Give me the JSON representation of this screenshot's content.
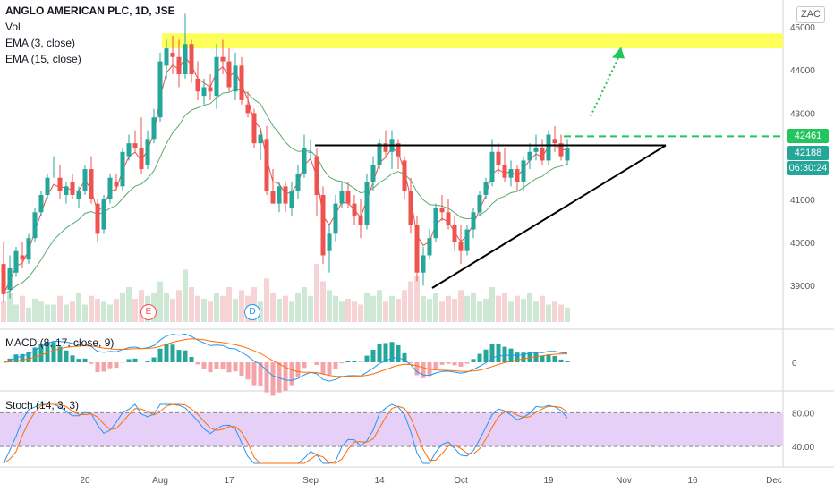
{
  "header": {
    "symbol_line": "ANGLO AMERICAN PLC, 1D, JSE",
    "indicators": [
      "Vol",
      "EMA (3, close)",
      "EMA (15, close)"
    ],
    "currency": "ZAC"
  },
  "colors": {
    "up": "#26a69a",
    "down": "#ef5350",
    "ema_fast": "#e0534a",
    "ema_slow": "#5aaa6e",
    "zone": "#ffff5c",
    "target": "#22c55e",
    "vol_up": "#cfe8d6",
    "vol_down": "#f6d3d5",
    "stoch_band": "#e6d0f7",
    "macd_line": "#2196f3",
    "signal_line": "#ff6d00"
  },
  "price_tags": {
    "level": "42461",
    "last": "42188",
    "countdown": "06:30:24"
  },
  "events": [
    "E",
    "D"
  ],
  "macd_pane": {
    "label": "MACD (8, 17, close, 9)",
    "zero_label": "0"
  },
  "stoch_pane": {
    "label": "Stoch (14, 3, 3)",
    "upper_label": "80.00",
    "lower_label": "40.00"
  },
  "chart_data": {
    "type": "candlestick",
    "y_ticks": [
      "45000",
      "44000",
      "43000",
      "42000",
      "41000",
      "40000",
      "39000"
    ],
    "y_range": [
      38600,
      45500
    ],
    "x_ticks": [
      {
        "label": "20",
        "bar": 13
      },
      {
        "label": "Aug",
        "bar": 25
      },
      {
        "label": "17",
        "bar": 36
      },
      {
        "label": "Sep",
        "bar": 49
      },
      {
        "label": "14",
        "bar": 60
      },
      {
        "label": "Oct",
        "bar": 73
      },
      {
        "label": "19",
        "bar": 87
      },
      {
        "label": "Nov",
        "bar": 99
      },
      {
        "label": "16",
        "bar": 110
      },
      {
        "label": "Dec",
        "bar": 123
      }
    ],
    "candles": [
      [
        39500,
        40000,
        38600,
        38800
      ],
      [
        38900,
        39700,
        38700,
        39400
      ],
      [
        39300,
        39900,
        39200,
        39800
      ],
      [
        39700,
        40000,
        39400,
        39600
      ],
      [
        39600,
        40200,
        39500,
        40100
      ],
      [
        40100,
        40800,
        40000,
        40700
      ],
      [
        40700,
        41200,
        40600,
        41100
      ],
      [
        41100,
        41600,
        41000,
        41500
      ],
      [
        41600,
        42000,
        41500,
        41600
      ],
      [
        41500,
        41800,
        41000,
        41200
      ],
      [
        41100,
        41400,
        40900,
        41300
      ],
      [
        41400,
        41600,
        41000,
        41100
      ],
      [
        41000,
        41300,
        40800,
        41200
      ],
      [
        41200,
        41800,
        41100,
        41700
      ],
      [
        41700,
        42000,
        40900,
        41000
      ],
      [
        40900,
        41000,
        40000,
        40200
      ],
      [
        40300,
        41100,
        40200,
        41000
      ],
      [
        41000,
        41600,
        40900,
        41500
      ],
      [
        41400,
        41600,
        41200,
        41300
      ],
      [
        41300,
        42200,
        41200,
        42100
      ],
      [
        42000,
        42500,
        41900,
        42300
      ],
      [
        42300,
        42600,
        42100,
        42200
      ],
      [
        42200,
        42900,
        41600,
        41700
      ],
      [
        41800,
        42600,
        41700,
        42400
      ],
      [
        42400,
        43100,
        42300,
        42900
      ],
      [
        42900,
        44400,
        42800,
        44200
      ],
      [
        44100,
        44700,
        43800,
        44500
      ],
      [
        44400,
        44800,
        43900,
        44300
      ],
      [
        44300,
        44700,
        43600,
        43900
      ],
      [
        43900,
        45300,
        43800,
        44600
      ],
      [
        44600,
        44700,
        43700,
        43900
      ],
      [
        43800,
        44200,
        43300,
        43500
      ],
      [
        43400,
        43800,
        43200,
        43600
      ],
      [
        43600,
        43900,
        43300,
        43500
      ],
      [
        43400,
        44600,
        43100,
        44300
      ],
      [
        44300,
        44700,
        43900,
        44200
      ],
      [
        44200,
        44500,
        43500,
        43600
      ],
      [
        43500,
        44400,
        43300,
        44100
      ],
      [
        44100,
        44300,
        43200,
        43300
      ],
      [
        43200,
        43500,
        42900,
        43000
      ],
      [
        43000,
        43100,
        42200,
        42300
      ],
      [
        42300,
        42600,
        41900,
        42500
      ],
      [
        42400,
        42700,
        41100,
        41200
      ],
      [
        41200,
        41700,
        40900,
        40900
      ],
      [
        40900,
        41400,
        40700,
        41300
      ],
      [
        41300,
        41400,
        40700,
        40900
      ],
      [
        40800,
        41400,
        40600,
        41200
      ],
      [
        41200,
        41800,
        41000,
        41600
      ],
      [
        41600,
        42500,
        41500,
        42200
      ],
      [
        42100,
        42400,
        41900,
        42100
      ],
      [
        42000,
        42200,
        40600,
        41100
      ],
      [
        41100,
        41300,
        39500,
        39700
      ],
      [
        39800,
        40400,
        39300,
        40200
      ],
      [
        40200,
        41100,
        40000,
        40900
      ],
      [
        40900,
        41400,
        40800,
        41200
      ],
      [
        41200,
        41400,
        40800,
        40900
      ],
      [
        40900,
        41100,
        40400,
        40600
      ],
      [
        40600,
        41000,
        40100,
        40400
      ],
      [
        40400,
        41600,
        40300,
        41400
      ],
      [
        41400,
        42000,
        41200,
        41800
      ],
      [
        41800,
        42400,
        41700,
        42300
      ],
      [
        42300,
        42600,
        42000,
        42100
      ],
      [
        42100,
        42600,
        41700,
        42400
      ],
      [
        42300,
        42400,
        41700,
        42000
      ],
      [
        41900,
        42000,
        41000,
        41200
      ],
      [
        41200,
        41500,
        40200,
        40400
      ],
      [
        40400,
        40600,
        39100,
        39300
      ],
      [
        39300,
        39900,
        39000,
        39700
      ],
      [
        39700,
        40300,
        39600,
        40100
      ],
      [
        40100,
        40900,
        40000,
        40800
      ],
      [
        40800,
        41100,
        40500,
        40700
      ],
      [
        40700,
        41000,
        40300,
        40400
      ],
      [
        40400,
        40600,
        39800,
        40000
      ],
      [
        40000,
        40400,
        39500,
        39800
      ],
      [
        39800,
        40400,
        39700,
        40300
      ],
      [
        40300,
        40800,
        40100,
        40700
      ],
      [
        40700,
        41200,
        40600,
        41100
      ],
      [
        41100,
        41500,
        41000,
        41400
      ],
      [
        41400,
        42400,
        41300,
        42100
      ],
      [
        42100,
        42300,
        41600,
        41800
      ],
      [
        41800,
        42200,
        41400,
        41500
      ],
      [
        41500,
        41900,
        41300,
        41700
      ],
      [
        41700,
        41800,
        41200,
        41400
      ],
      [
        41400,
        42000,
        41200,
        41900
      ],
      [
        41900,
        42300,
        41700,
        42100
      ],
      [
        42100,
        42500,
        41900,
        42200
      ],
      [
        42200,
        42400,
        41800,
        41900
      ],
      [
        41900,
        42600,
        41800,
        42500
      ],
      [
        42400,
        42700,
        42100,
        42300
      ],
      [
        42300,
        42500,
        41900,
        42000
      ],
      [
        41900,
        42400,
        41800,
        42188
      ]
    ],
    "volume": [
      0.35,
      0.5,
      0.3,
      0.45,
      0.25,
      0.4,
      0.35,
      0.3,
      0.3,
      0.45,
      0.3,
      0.35,
      0.5,
      0.3,
      0.45,
      0.4,
      0.35,
      0.3,
      0.4,
      0.5,
      0.6,
      0.4,
      0.55,
      0.45,
      0.5,
      0.7,
      0.5,
      0.4,
      0.55,
      0.9,
      0.6,
      0.45,
      0.4,
      0.35,
      0.5,
      0.45,
      0.6,
      0.4,
      0.55,
      0.45,
      0.6,
      0.35,
      0.75,
      0.5,
      0.4,
      0.45,
      0.35,
      0.5,
      0.6,
      0.45,
      1.0,
      0.7,
      0.55,
      0.45,
      0.35,
      0.4,
      0.35,
      0.3,
      0.5,
      0.45,
      0.55,
      0.35,
      0.45,
      0.4,
      0.55,
      0.7,
      0.8,
      0.45,
      0.4,
      0.5,
      0.35,
      0.45,
      0.4,
      0.55,
      0.45,
      0.5,
      0.35,
      0.4,
      0.6,
      0.45,
      0.5,
      0.35,
      0.45,
      0.4,
      0.5,
      0.35,
      0.45,
      0.3,
      0.35,
      0.3,
      0.25
    ],
    "annotations": {
      "resistance_zone": [
        44500,
        44850
      ],
      "neckline": 42250,
      "breakout_level": 42461,
      "target": 44450
    },
    "macd_pane": {
      "zero_label": "0"
    },
    "stoch_pane": {
      "levels": [
        80,
        40
      ]
    }
  }
}
